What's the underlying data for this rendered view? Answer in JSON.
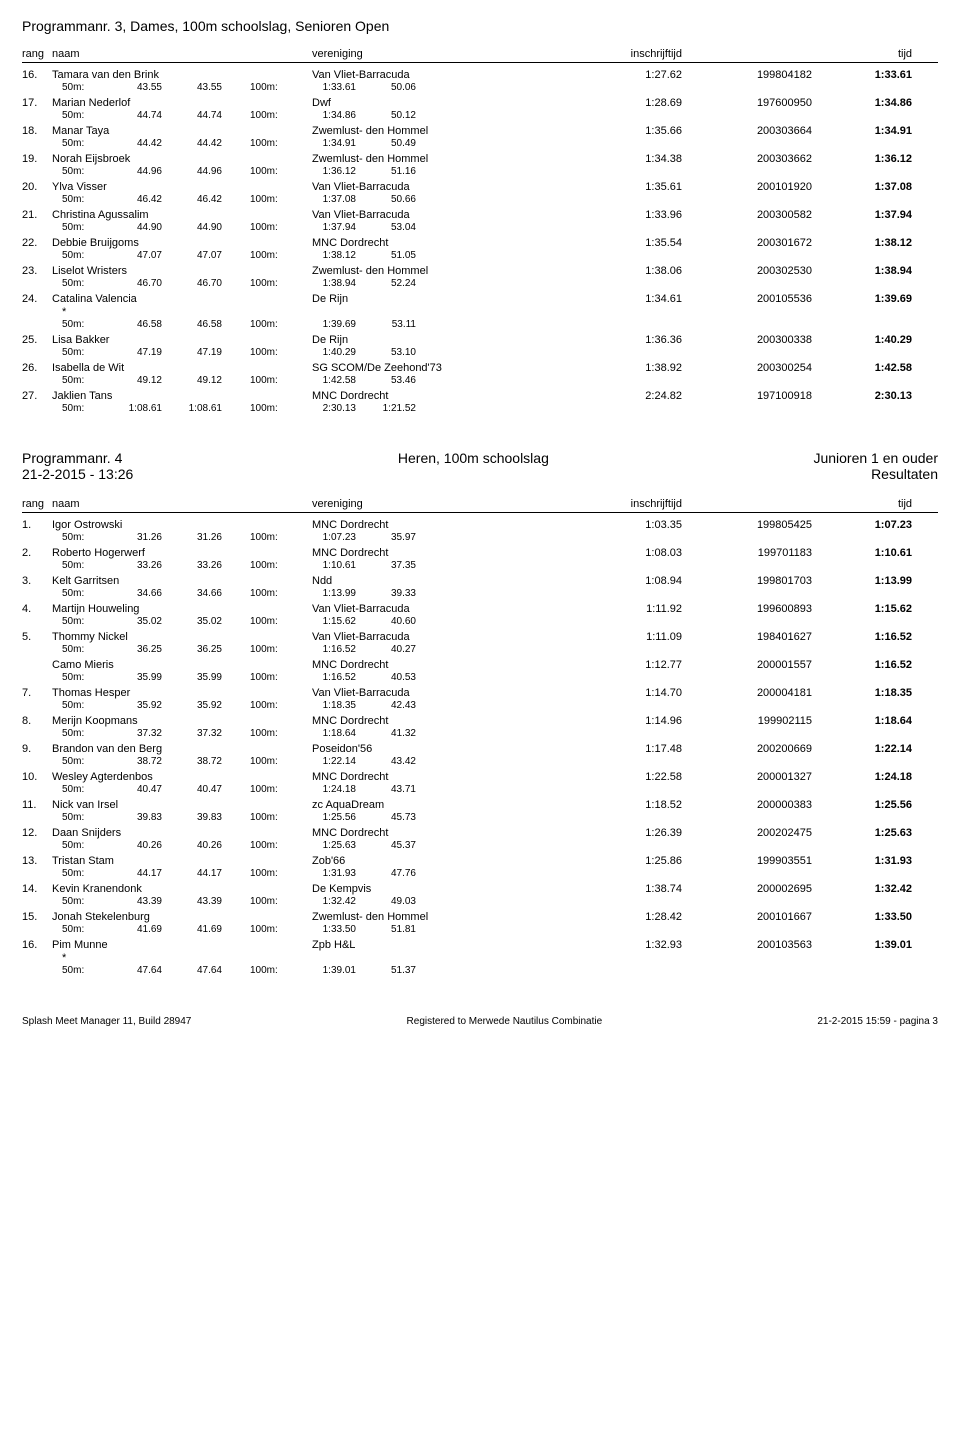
{
  "event1": {
    "title": "Programmanr. 3, Dames, 100m schoolslag, Senioren Open",
    "headers": {
      "rang": "rang",
      "naam": "naam",
      "vereniging": "vereniging",
      "inschrijftijd": "inschrijftijd",
      "tijd": "tijd"
    },
    "rows": [
      {
        "rang": "16.",
        "naam": "Tamara van den Brink",
        "ver": "Van Vliet-Barracuda",
        "ins": "1:27.62",
        "reg": "199804182",
        "tijd": "1:33.61",
        "sp": [
          "50m:",
          "43.55",
          "43.55",
          "100m:",
          "1:33.61",
          "50.06"
        ]
      },
      {
        "rang": "17.",
        "naam": "Marian Nederlof",
        "ver": "Dwf",
        "dwf": true,
        "ins": "1:28.69",
        "reg": "197600950",
        "tijd": "1:34.86",
        "sp": [
          "50m:",
          "44.74",
          "44.74",
          "100m:",
          "1:34.86",
          "50.12"
        ]
      },
      {
        "rang": "18.",
        "naam": "Manar Taya",
        "ver": "Zwemlust- den Hommel",
        "ins": "1:35.66",
        "reg": "200303664",
        "tijd": "1:34.91",
        "sp": [
          "50m:",
          "44.42",
          "44.42",
          "100m:",
          "1:34.91",
          "50.49"
        ]
      },
      {
        "rang": "19.",
        "naam": "Norah Eijsbroek",
        "ver": "Zwemlust- den Hommel",
        "ins": "1:34.38",
        "reg": "200303662",
        "tijd": "1:36.12",
        "sp": [
          "50m:",
          "44.96",
          "44.96",
          "100m:",
          "1:36.12",
          "51.16"
        ]
      },
      {
        "rang": "20.",
        "naam": "Ylva Visser",
        "ver": "Van Vliet-Barracuda",
        "ins": "1:35.61",
        "reg": "200101920",
        "tijd": "1:37.08",
        "sp": [
          "50m:",
          "46.42",
          "46.42",
          "100m:",
          "1:37.08",
          "50.66"
        ]
      },
      {
        "rang": "21.",
        "naam": "Christina Agussalim",
        "ver": "Van Vliet-Barracuda",
        "ins": "1:33.96",
        "reg": "200300582",
        "tijd": "1:37.94",
        "sp": [
          "50m:",
          "44.90",
          "44.90",
          "100m:",
          "1:37.94",
          "53.04"
        ]
      },
      {
        "rang": "22.",
        "naam": "Debbie Bruijgoms",
        "ver": "MNC Dordrecht",
        "ins": "1:35.54",
        "reg": "200301672",
        "tijd": "1:38.12",
        "sp": [
          "50m:",
          "47.07",
          "47.07",
          "100m:",
          "1:38.12",
          "51.05"
        ]
      },
      {
        "rang": "23.",
        "naam": "Liselot Wristers",
        "ver": "Zwemlust- den Hommel",
        "ins": "1:38.06",
        "reg": "200302530",
        "tijd": "1:38.94",
        "sp": [
          "50m:",
          "46.70",
          "46.70",
          "100m:",
          "1:38.94",
          "52.24"
        ]
      },
      {
        "rang": "24.",
        "naam": "Catalina Valencia",
        "ver": "De Rijn",
        "ins": "1:34.61",
        "reg": "200105536",
        "tijd": "1:39.69",
        "star": true,
        "sp": [
          "50m:",
          "46.58",
          "46.58",
          "100m:",
          "1:39.69",
          "53.11"
        ]
      },
      {
        "rang": "25.",
        "naam": "Lisa Bakker",
        "ver": "De Rijn",
        "ins": "1:36.36",
        "reg": "200300338",
        "tijd": "1:40.29",
        "sp": [
          "50m:",
          "47.19",
          "47.19",
          "100m:",
          "1:40.29",
          "53.10"
        ]
      },
      {
        "rang": "26.",
        "naam": "Isabella de Wit",
        "ver": "SG SCOM/De Zeehond'73",
        "ins": "1:38.92",
        "reg": "200300254",
        "tijd": "1:42.58",
        "sp": [
          "50m:",
          "49.12",
          "49.12",
          "100m:",
          "1:42.58",
          "53.46"
        ]
      },
      {
        "rang": "27.",
        "naam": "Jaklien Tans",
        "ver": "MNC Dordrecht",
        "ins": "2:24.82",
        "reg": "197100918",
        "tijd": "2:30.13",
        "sp": [
          "50m:",
          "1:08.61",
          "1:08.61",
          "100m:",
          "2:30.13",
          "1:21.52"
        ]
      }
    ]
  },
  "prog4": {
    "left1": "Programmanr. 4",
    "left2": "21-2-2015 - 13:26",
    "mid": "Heren, 100m schoolslag",
    "right1": "Junioren 1 en ouder",
    "right2": "Resultaten"
  },
  "event2": {
    "headers": {
      "rang": "rang",
      "naam": "naam",
      "vereniging": "vereniging",
      "inschrijftijd": "inschrijftijd",
      "tijd": "tijd"
    },
    "rows": [
      {
        "rang": "1.",
        "naam": "Igor Ostrowski",
        "ver": "MNC Dordrecht",
        "ins": "1:03.35",
        "reg": "199805425",
        "tijd": "1:07.23",
        "sp": [
          "50m:",
          "31.26",
          "31.26",
          "100m:",
          "1:07.23",
          "35.97"
        ]
      },
      {
        "rang": "2.",
        "naam": "Roberto Hogerwerf",
        "ver": "MNC Dordrecht",
        "ins": "1:08.03",
        "reg": "199701183",
        "tijd": "1:10.61",
        "sp": [
          "50m:",
          "33.26",
          "33.26",
          "100m:",
          "1:10.61",
          "37.35"
        ]
      },
      {
        "rang": "3.",
        "naam": "Kelt Garritsen",
        "ver": "Ndd",
        "ins": "1:08.94",
        "reg": "199801703",
        "tijd": "1:13.99",
        "sp": [
          "50m:",
          "34.66",
          "34.66",
          "100m:",
          "1:13.99",
          "39.33"
        ]
      },
      {
        "rang": "4.",
        "naam": "Martijn Houweling",
        "ver": "Van Vliet-Barracuda",
        "ins": "1:11.92",
        "reg": "199600893",
        "tijd": "1:15.62",
        "sp": [
          "50m:",
          "35.02",
          "35.02",
          "100m:",
          "1:15.62",
          "40.60"
        ]
      },
      {
        "rang": "5.",
        "naam": "Thommy Nickel",
        "ver": "Van Vliet-Barracuda",
        "ins": "1:11.09",
        "reg": "198401627",
        "tijd": "1:16.52",
        "sp": [
          "50m:",
          "36.25",
          "36.25",
          "100m:",
          "1:16.52",
          "40.27"
        ]
      },
      {
        "rang": "",
        "naam": "Camo Mieris",
        "ver": "MNC Dordrecht",
        "ins": "1:12.77",
        "reg": "200001557",
        "tijd": "1:16.52",
        "sp": [
          "50m:",
          "35.99",
          "35.99",
          "100m:",
          "1:16.52",
          "40.53"
        ]
      },
      {
        "rang": "7.",
        "naam": "Thomas Hesper",
        "ver": "Van Vliet-Barracuda",
        "ins": "1:14.70",
        "reg": "200004181",
        "tijd": "1:18.35",
        "sp": [
          "50m:",
          "35.92",
          "35.92",
          "100m:",
          "1:18.35",
          "42.43"
        ]
      },
      {
        "rang": "8.",
        "naam": "Merijn Koopmans",
        "ver": "MNC Dordrecht",
        "ins": "1:14.96",
        "reg": "199902115",
        "tijd": "1:18.64",
        "sp": [
          "50m:",
          "37.32",
          "37.32",
          "100m:",
          "1:18.64",
          "41.32"
        ]
      },
      {
        "rang": "9.",
        "naam": "Brandon van den Berg",
        "ver": "Poseidon'56",
        "ins": "1:17.48",
        "reg": "200200669",
        "tijd": "1:22.14",
        "sp": [
          "50m:",
          "38.72",
          "38.72",
          "100m:",
          "1:22.14",
          "43.42"
        ]
      },
      {
        "rang": "10.",
        "naam": "Wesley Agterdenbos",
        "ver": "MNC Dordrecht",
        "ins": "1:22.58",
        "reg": "200001327",
        "tijd": "1:24.18",
        "sp": [
          "50m:",
          "40.47",
          "40.47",
          "100m:",
          "1:24.18",
          "43.71"
        ]
      },
      {
        "rang": "11.",
        "naam": "Nick van Irsel",
        "ver": "zc AquaDream",
        "ins": "1:18.52",
        "reg": "200000383",
        "tijd": "1:25.56",
        "sp": [
          "50m:",
          "39.83",
          "39.83",
          "100m:",
          "1:25.56",
          "45.73"
        ]
      },
      {
        "rang": "12.",
        "naam": "Daan Snijders",
        "ver": "MNC Dordrecht",
        "ins": "1:26.39",
        "reg": "200202475",
        "tijd": "1:25.63",
        "sp": [
          "50m:",
          "40.26",
          "40.26",
          "100m:",
          "1:25.63",
          "45.37"
        ]
      },
      {
        "rang": "13.",
        "naam": "Tristan Stam",
        "ver": "Zob'66",
        "ins": "1:25.86",
        "reg": "199903551",
        "tijd": "1:31.93",
        "sp": [
          "50m:",
          "44.17",
          "44.17",
          "100m:",
          "1:31.93",
          "47.76"
        ]
      },
      {
        "rang": "14.",
        "naam": "Kevin Kranendonk",
        "ver": "De Kempvis",
        "ins": "1:38.74",
        "reg": "200002695",
        "tijd": "1:32.42",
        "sp": [
          "50m:",
          "43.39",
          "43.39",
          "100m:",
          "1:32.42",
          "49.03"
        ]
      },
      {
        "rang": "15.",
        "naam": "Jonah Stekelenburg",
        "ver": "Zwemlust- den Hommel",
        "ins": "1:28.42",
        "reg": "200101667",
        "tijd": "1:33.50",
        "sp": [
          "50m:",
          "41.69",
          "41.69",
          "100m:",
          "1:33.50",
          "51.81"
        ]
      },
      {
        "rang": "16.",
        "naam": "Pim Munne",
        "ver": "Zpb H&L",
        "ins": "1:32.93",
        "reg": "200103563",
        "tijd": "1:39.01",
        "star": true,
        "sp": [
          "50m:",
          "47.64",
          "47.64",
          "100m:",
          "1:39.01",
          "51.37"
        ]
      }
    ]
  },
  "footer": {
    "left": "Splash Meet Manager 11, Build 28947",
    "mid": "Registered to Merwede Nautilus Combinatie",
    "right": "21-2-2015 15:59 - pagina 3"
  }
}
